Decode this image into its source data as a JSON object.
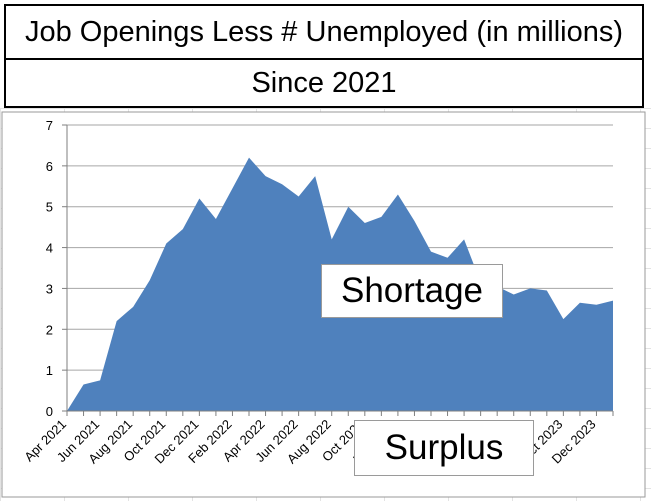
{
  "chart_data": {
    "type": "area",
    "title": "Job Openings Less # Unemployed (in millions)",
    "subtitle": "Since 2021",
    "xlabel": "",
    "ylabel": "",
    "ylim": [
      0,
      7
    ],
    "yticks": [
      0,
      1,
      2,
      3,
      4,
      5,
      6,
      7
    ],
    "grid": true,
    "legend": "none",
    "fill_color": "#4f81bd",
    "x": [
      "Apr 2021",
      "May 2021",
      "Jun 2021",
      "Jul 2021",
      "Aug 2021",
      "Sep 2021",
      "Oct 2021",
      "Nov 2021",
      "Dec 2021",
      "Jan 2022",
      "Feb 2022",
      "Mar 2022",
      "Apr 2022",
      "May 2022",
      "Jun 2022",
      "Jul 2022",
      "Aug 2022",
      "Sep 2022",
      "Oct 2022",
      "Nov 2022",
      "Dec 2022",
      "Jan 2023",
      "Feb 2023",
      "Mar 2023",
      "Apr 2023",
      "May 2023",
      "Jun 2023",
      "Jul 2023",
      "Aug 2023",
      "Sep 2023",
      "Oct 2023",
      "Nov 2023",
      "Dec 2023",
      "Jan 2024"
    ],
    "tick_labels": [
      "Apr 2021",
      "Jun 2021",
      "Aug 2021",
      "Oct 2021",
      "Dec 2021",
      "Feb 2022",
      "Apr 2022",
      "Jun 2022",
      "Aug 2022",
      "Oct 2022",
      "Dec 2022",
      "Feb 2023",
      "Apr 2023",
      "Jun 2023",
      "Aug 2023",
      "Oct 2023",
      "Dec 2023"
    ],
    "values": [
      0.0,
      0.65,
      0.75,
      2.2,
      2.55,
      3.2,
      4.1,
      4.45,
      5.2,
      4.7,
      5.45,
      6.2,
      5.75,
      5.55,
      5.25,
      5.75,
      4.2,
      5.0,
      4.6,
      4.75,
      5.3,
      4.65,
      3.9,
      3.75,
      4.2,
      3.15,
      3.05,
      2.85,
      3.0,
      2.95,
      2.25,
      2.65,
      2.6,
      2.7
    ],
    "annotations": [
      "Shortage",
      "Surplus"
    ]
  }
}
